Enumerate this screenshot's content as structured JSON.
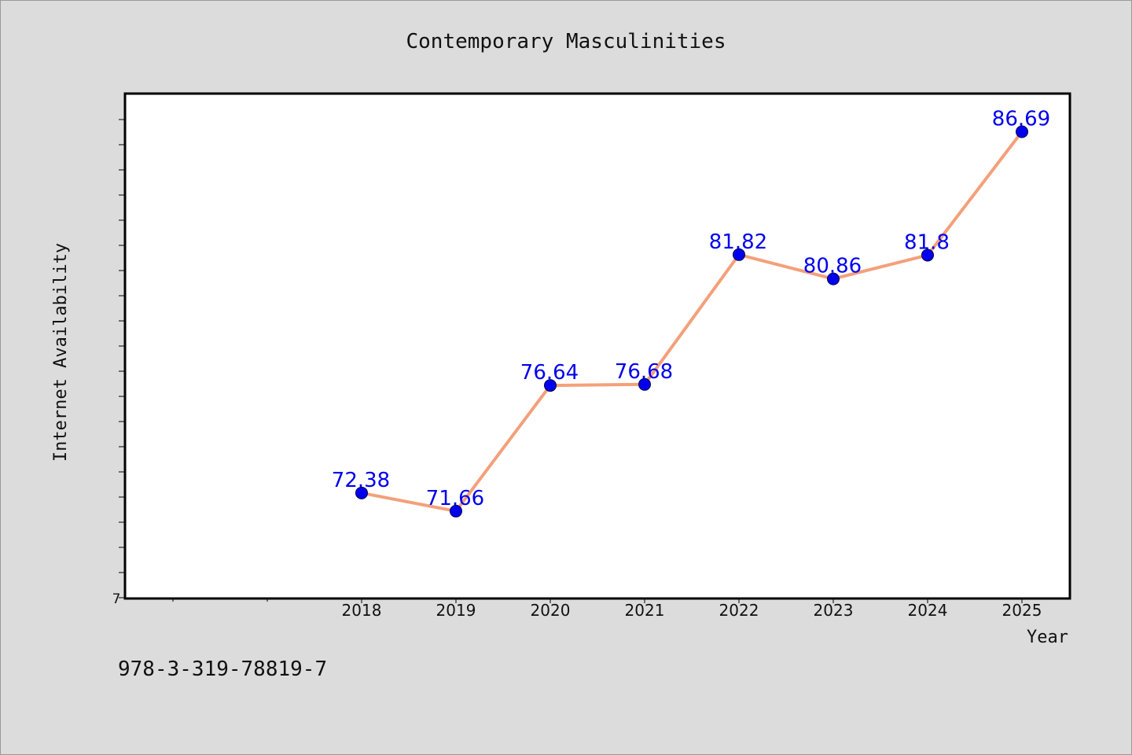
{
  "chart_data": {
    "type": "line",
    "title": "Contemporary Masculinities",
    "xlabel": "Year",
    "ylabel": "Internet Availability",
    "x": [
      "2018",
      "2019",
      "2020",
      "2021",
      "2022",
      "2023",
      "2024",
      "2025"
    ],
    "series": [
      {
        "values": [
          72.38,
          71.66,
          76.64,
          76.68,
          81.82,
          80.86,
          81.8,
          86.69
        ],
        "data_labels": [
          "72.38",
          "71.66",
          "76.64",
          "76.68",
          "81.82",
          "80.86",
          "81.8",
          "86.69"
        ]
      }
    ],
    "y_tick_labels": [
      "7"
    ],
    "ylim": [
      68.2,
      88.2
    ],
    "grid": false,
    "legend": "none",
    "colors": {
      "line": "#f4a07a",
      "marker": "#0000ee",
      "label": "#0000ee",
      "background": "#dcdcdc",
      "plot_bg": "#ffffff"
    }
  },
  "footer": {
    "code": "978-3-319-78819-7"
  }
}
